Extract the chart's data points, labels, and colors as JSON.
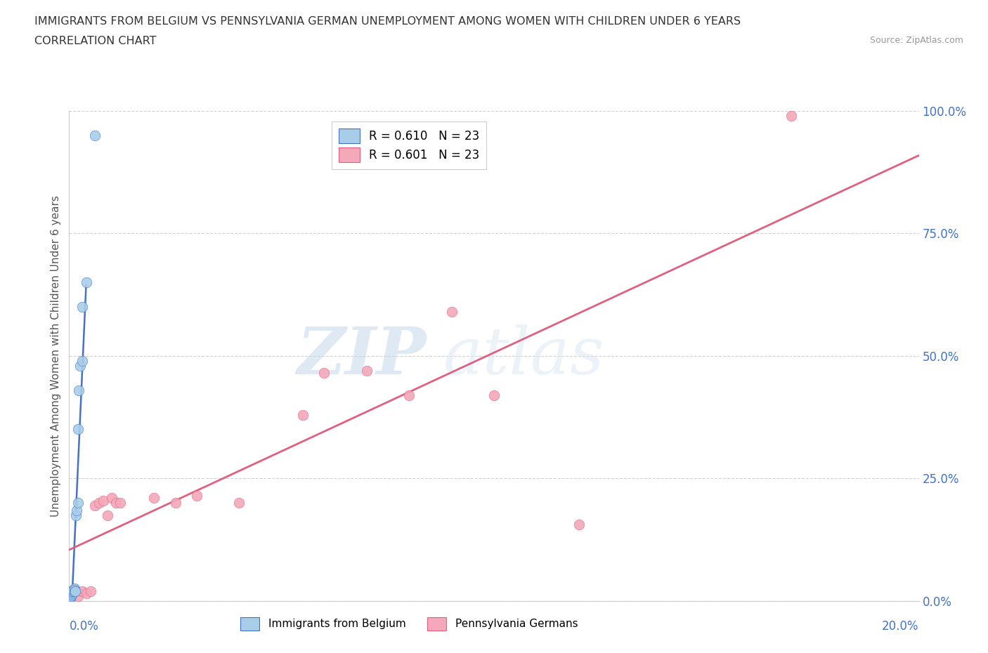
{
  "title_line1": "IMMIGRANTS FROM BELGIUM VS PENNSYLVANIA GERMAN UNEMPLOYMENT AMONG WOMEN WITH CHILDREN UNDER 6 YEARS",
  "title_line2": "CORRELATION CHART",
  "source_text": "Source: ZipAtlas.com",
  "ylabel": "Unemployment Among Women with Children Under 6 years",
  "y_ticks": [
    0.0,
    0.25,
    0.5,
    0.75,
    1.0
  ],
  "y_tick_labels": [
    "0.0%",
    "25.0%",
    "50.0%",
    "75.0%",
    "100.0%"
  ],
  "x_tick_labels": [
    "0.0%",
    "20.0%"
  ],
  "legend_r1": "R = 0.610   N = 23",
  "legend_r2": "R = 0.601   N = 23",
  "legend_label1": "Immigrants from Belgium",
  "legend_label2": "Pennsylvania Germans",
  "color_blue": "#a8cde8",
  "color_pink": "#f4a8ba",
  "color_blue_line": "#4472c4",
  "color_pink_line": "#e06080",
  "color_blue_dashed": "#a8cde8",
  "watermark_zip": "ZIP",
  "watermark_atlas": "atlas",
  "xlim": [
    0.0,
    0.2
  ],
  "ylim": [
    0.0,
    1.0
  ],
  "belgium_x": [
    0.0002,
    0.0003,
    0.0005,
    0.0006,
    0.0007,
    0.0008,
    0.0009,
    0.001,
    0.001,
    0.0012,
    0.0013,
    0.0014,
    0.0015,
    0.0016,
    0.0017,
    0.002,
    0.002,
    0.0022,
    0.0025,
    0.003,
    0.003,
    0.004,
    0.006
  ],
  "belgium_y": [
    0.005,
    0.008,
    0.01,
    0.012,
    0.015,
    0.018,
    0.02,
    0.02,
    0.022,
    0.025,
    0.022,
    0.02,
    0.02,
    0.175,
    0.185,
    0.2,
    0.35,
    0.43,
    0.48,
    0.49,
    0.6,
    0.65,
    0.95
  ],
  "pa_german_x": [
    0.002,
    0.003,
    0.004,
    0.005,
    0.006,
    0.007,
    0.008,
    0.009,
    0.01,
    0.011,
    0.012,
    0.02,
    0.025,
    0.03,
    0.04,
    0.055,
    0.06,
    0.07,
    0.08,
    0.09,
    0.1,
    0.12,
    0.17
  ],
  "pa_german_y": [
    0.01,
    0.02,
    0.015,
    0.02,
    0.195,
    0.2,
    0.205,
    0.175,
    0.21,
    0.2,
    0.2,
    0.21,
    0.2,
    0.215,
    0.2,
    0.38,
    0.465,
    0.47,
    0.42,
    0.59,
    0.42,
    0.155,
    0.99
  ]
}
